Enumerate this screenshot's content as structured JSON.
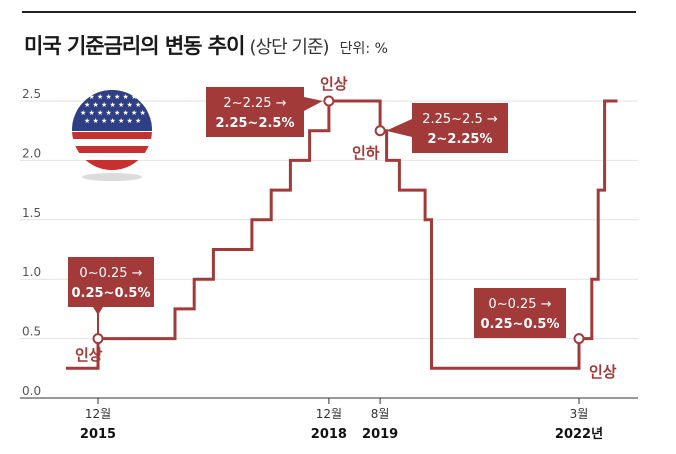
{
  "header": {
    "title": "미국 기준금리의 변동 추이",
    "subtitle": "(상단 기준)",
    "unit": "단위: %"
  },
  "icon": "us-flag-icon",
  "colors": {
    "line": "#a23a3a",
    "box": "#a23a3a",
    "grid": "#e2e2e2",
    "axis": "#333333"
  },
  "chart_data": {
    "type": "line",
    "step": true,
    "y_ticks": [
      "0.0",
      "0.5",
      "1.0",
      "1.5",
      "2.0",
      "2.5"
    ],
    "ylim": [
      0,
      2.5
    ],
    "grid": true,
    "x_ticks": [
      {
        "month": "12월",
        "year": "2015",
        "pos": 2015.917
      },
      {
        "month": "12월",
        "year": "2018",
        "pos": 2018.917
      },
      {
        "month": "8월",
        "year": "2019",
        "pos": 2019.583
      },
      {
        "month": "3월",
        "year": "2022년",
        "pos": 2022.167
      }
    ],
    "series": [
      {
        "x": [
          2015.5,
          2015.917,
          2016.917,
          2017.167,
          2017.417,
          2017.917,
          2018.167,
          2018.417,
          2018.667,
          2018.917,
          2019.583,
          2019.667,
          2019.833,
          2020.167,
          2020.25,
          2022.167,
          2022.333,
          2022.417,
          2022.5,
          2022.667
        ],
        "values": [
          0.25,
          0.5,
          0.75,
          1.0,
          1.25,
          1.5,
          1.75,
          2.0,
          2.25,
          2.5,
          2.25,
          2.0,
          1.75,
          1.5,
          0.25,
          0.5,
          1.0,
          1.75,
          2.5,
          2.5
        ]
      }
    ],
    "annotations": [
      {
        "label": "인상",
        "range_from": "0~0.25 →",
        "range_to": "0.25~0.5%",
        "x": 2015.917,
        "y": 0.5
      },
      {
        "label": "인상",
        "range_from": "2~2.25 →",
        "range_to": "2.25~2.5%",
        "x": 2018.917,
        "y": 2.5
      },
      {
        "label": "인하",
        "range_from": "2.25~2.5 →",
        "range_to": "2~2.25%",
        "x": 2019.583,
        "y": 2.25
      },
      {
        "label": "인상",
        "range_from": "0~0.25 →",
        "range_to": "0.25~0.5%",
        "x": 2022.167,
        "y": 0.5
      }
    ]
  }
}
